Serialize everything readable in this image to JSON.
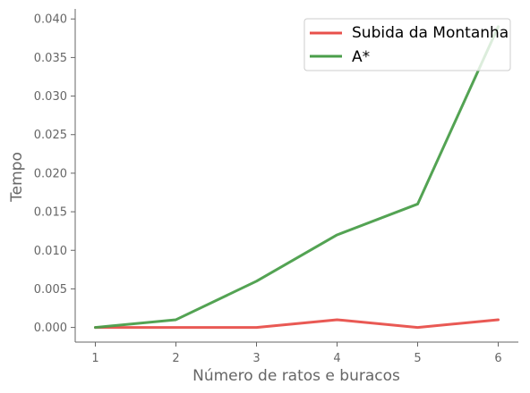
{
  "chart_data": {
    "type": "line",
    "title": "",
    "xlabel": "Número de ratos e buracos",
    "ylabel": "Tempo",
    "x": [
      1,
      2,
      3,
      4,
      5,
      6
    ],
    "xlim": [
      0.75,
      6.25
    ],
    "ylim": [
      -0.0019,
      0.0413
    ],
    "x_ticks": [
      "1",
      "2",
      "3",
      "4",
      "5",
      "6"
    ],
    "y_ticks": [
      "0.000",
      "0.005",
      "0.010",
      "0.015",
      "0.020",
      "0.025",
      "0.030",
      "0.035",
      "0.040"
    ],
    "grid": false,
    "legend_position": "top-right",
    "series": [
      {
        "name": "Subida da Montanha",
        "color": "#e8504b",
        "values": [
          0.0,
          0.0,
          0.0,
          0.001,
          0.0,
          0.001
        ]
      },
      {
        "name": "A*",
        "color": "#4a9e4a",
        "values": [
          0.0,
          0.001,
          0.006,
          0.012,
          0.016,
          0.039
        ]
      }
    ]
  }
}
